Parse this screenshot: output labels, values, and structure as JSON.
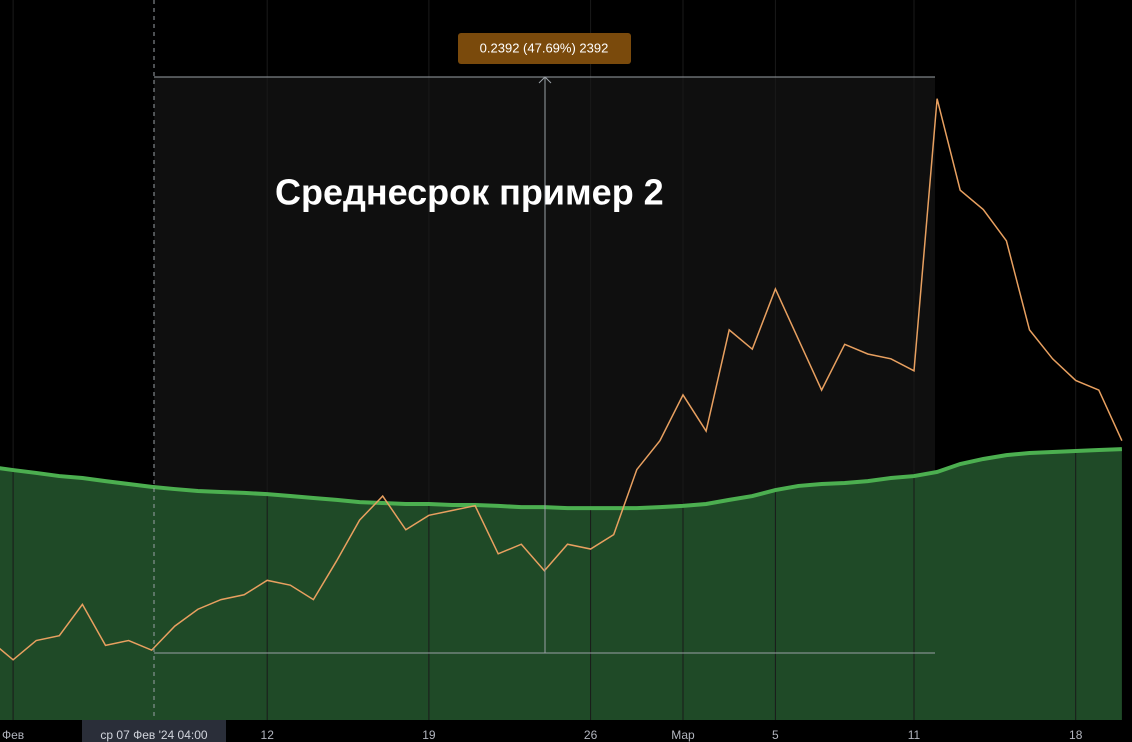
{
  "chart_data": {
    "type": "line",
    "title": "Среднесрок пример 2",
    "measure_label": "0.2392 (47.69%) 2392",
    "crosshair_label": "ср 07 Фев '24   04:00",
    "categories": [
      null,
      "Фев",
      null,
      null,
      null,
      null,
      null,
      null,
      null,
      null,
      null,
      null,
      "12",
      null,
      null,
      null,
      null,
      null,
      null,
      "19",
      null,
      null,
      null,
      null,
      null,
      null,
      "26",
      null,
      null,
      null,
      "Мар",
      null,
      null,
      null,
      "5",
      null,
      null,
      null,
      null,
      null,
      "11",
      null,
      null,
      null,
      null,
      null,
      null,
      "18",
      null,
      null
    ],
    "series": [
      {
        "color": "#e8a060",
        "values": [
          0.507,
          0.499,
          0.507,
          0.509,
          0.522,
          0.505,
          0.507,
          0.503,
          0.513,
          0.52,
          0.524,
          0.526,
          0.532,
          0.53,
          0.524,
          0.54,
          0.557,
          0.567,
          0.553,
          0.559,
          0.561,
          0.563,
          0.543,
          0.547,
          0.536,
          0.547,
          0.545,
          0.551,
          0.578,
          0.59,
          0.609,
          0.594,
          0.636,
          0.628,
          0.653,
          0.632,
          0.611,
          0.63,
          0.626,
          0.624,
          0.619,
          0.732,
          0.694,
          0.686,
          0.673,
          0.636,
          0.624,
          0.615,
          0.611,
          0.59
        ]
      },
      {
        "color": "#4caf50",
        "area_color": "#1f4a27",
        "values": [
          0.5791,
          0.5778,
          0.5766,
          0.5753,
          0.5745,
          0.5732,
          0.572,
          0.5708,
          0.5699,
          0.5691,
          0.5687,
          0.5683,
          0.5678,
          0.567,
          0.5662,
          0.5654,
          0.5645,
          0.5641,
          0.5637,
          0.5637,
          0.5633,
          0.5633,
          0.5629,
          0.5624,
          0.5624,
          0.562,
          0.562,
          0.562,
          0.562,
          0.5624,
          0.5629,
          0.5637,
          0.5654,
          0.567,
          0.5695,
          0.5712,
          0.572,
          0.5724,
          0.5732,
          0.5745,
          0.5753,
          0.577,
          0.5803,
          0.5824,
          0.584,
          0.5849,
          0.5853,
          0.5857,
          0.5861,
          0.5865
        ]
      }
    ],
    "ylim": [
      0.474,
      0.773
    ]
  }
}
